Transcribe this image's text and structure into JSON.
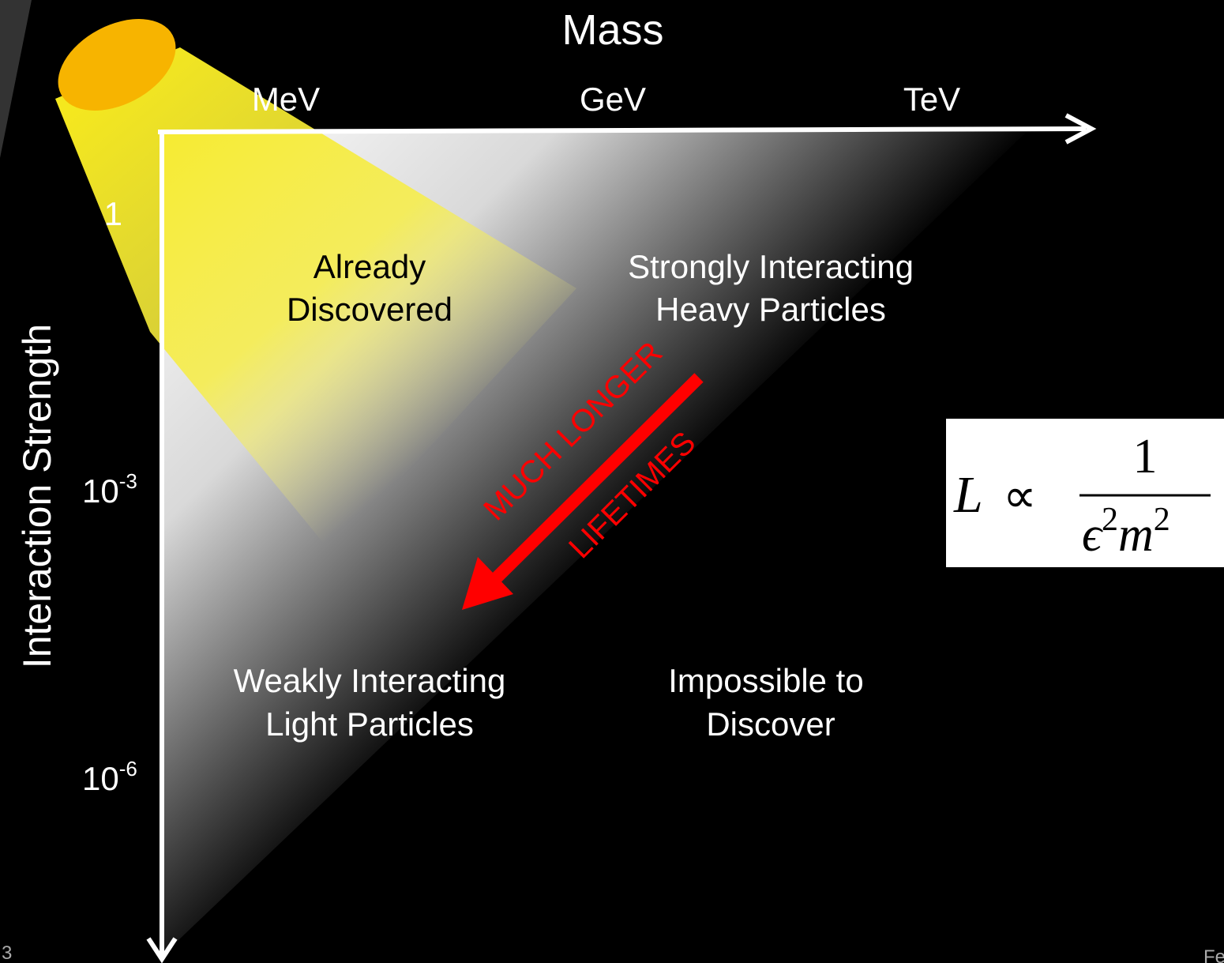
{
  "title": "Mass",
  "x_axis": {
    "labels": [
      "MeV",
      "GeV",
      "TeV"
    ]
  },
  "y_axis": {
    "title": "Interaction Strength",
    "labels": [
      {
        "base": "1"
      },
      {
        "base": "10",
        "exponent": "-3"
      },
      {
        "base": "10",
        "exponent": "-6"
      }
    ]
  },
  "regions": [
    {
      "lines": [
        "Already",
        "Discovered"
      ]
    },
    {
      "lines": [
        "Strongly Interacting",
        "Heavy Particles"
      ]
    },
    {
      "lines": [
        "Weakly Interacting",
        "Light Particles"
      ]
    },
    {
      "lines": [
        "Impossible to",
        "Discover"
      ]
    }
  ],
  "arrow_label": [
    "MUCH LONGER",
    "LIFETIMES"
  ],
  "formula": {
    "lhs": "L",
    "relation": "∝",
    "numerator": "1",
    "denominator": [
      {
        "base": "ϵ",
        "exponent": "2"
      },
      {
        "base": "m",
        "exponent": "2"
      }
    ]
  },
  "footer": {
    "page": "3",
    "right": "Fe"
  }
}
